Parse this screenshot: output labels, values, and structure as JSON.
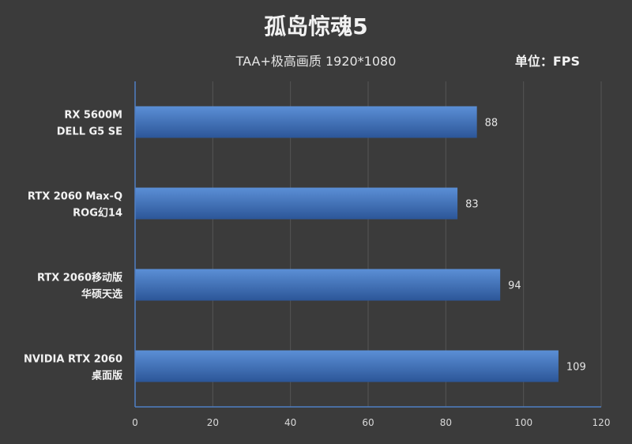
{
  "chart_data": {
    "type": "bar",
    "orientation": "horizontal",
    "title": "孤岛惊魂5",
    "subtitle": "TAA+极高画质  1920*1080",
    "unit_label": "单位：FPS",
    "categories": [
      [
        "RX 5600M",
        "DELL G5 SE"
      ],
      [
        "RTX 2060 Max-Q",
        "ROG幻14"
      ],
      [
        "RTX 2060移动版",
        "华硕天选"
      ],
      [
        "NVIDIA RTX 2060",
        "桌面版"
      ]
    ],
    "values": [
      88,
      83,
      94,
      109
    ],
    "xlim": [
      0,
      120
    ],
    "xticks": [
      0,
      20,
      40,
      60,
      80,
      100,
      120
    ],
    "grid": true,
    "colors": {
      "bar_top": "#5b8fd6",
      "bar_bottom": "#2c5698",
      "grid": "#555555",
      "axis": "#4f7fc4"
    }
  }
}
